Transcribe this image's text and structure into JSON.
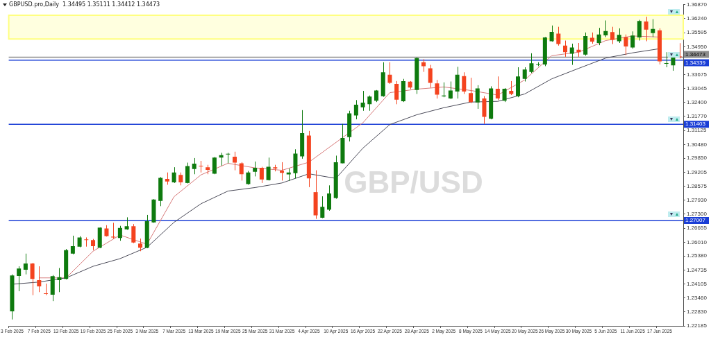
{
  "chart_data": {
    "type": "candlestick",
    "title": "GBPUSD.pro,Daily  1.34495 1.35111 1.34412 1.34473",
    "annotations": [
      "GBP/USD"
    ],
    "categories": [
      "3 Feb 2025",
      null,
      null,
      null,
      "7 Feb 2025",
      null,
      null,
      null,
      "13 Feb 2025",
      null,
      null,
      null,
      "19 Feb 2025",
      null,
      null,
      null,
      "25 Feb 2025",
      null,
      null,
      null,
      "3 Mar 2025",
      null,
      null,
      null,
      "7 Mar 2025",
      null,
      null,
      null,
      "13 Mar 2025",
      null,
      null,
      null,
      "19 Mar 2025",
      null,
      null,
      null,
      "25 Mar 2025",
      null,
      null,
      null,
      "31 Mar 2025",
      null,
      null,
      null,
      "4 Apr 2025",
      null,
      null,
      null,
      "10 Apr 2025",
      null,
      null,
      null,
      "16 Apr 2025",
      null,
      null,
      null,
      "22 Apr 2025",
      null,
      null,
      null,
      "28 Apr 2025",
      null,
      null,
      null,
      "2 May 2025",
      null,
      null,
      null,
      "8 May 2025",
      null,
      null,
      null,
      "14 May 2025",
      null,
      null,
      null,
      "20 May 2025",
      null,
      null,
      null,
      "26 May 2025",
      null,
      null,
      null,
      "30 May 2025",
      null,
      null,
      null,
      "5 Jun 2025",
      null,
      null,
      null,
      "11 Jun 2025",
      null,
      null,
      null,
      "17 Jun 2025",
      null,
      null,
      null
    ],
    "ohlc": [
      [
        1.2285,
        1.2454,
        1.2248,
        1.2449
      ],
      [
        1.2447,
        1.2491,
        1.2377,
        1.2481
      ],
      [
        1.2475,
        1.2549,
        1.2454,
        1.2504
      ],
      [
        1.2504,
        1.2507,
        1.2359,
        1.2433
      ],
      [
        1.2428,
        1.2491,
        1.2373,
        1.2399
      ],
      [
        1.2366,
        1.2412,
        1.2359,
        1.2364
      ],
      [
        1.2361,
        1.2451,
        1.2332,
        1.2446
      ],
      [
        1.2428,
        1.2483,
        1.2373,
        1.2441
      ],
      [
        1.2433,
        1.257,
        1.2431,
        1.2565
      ],
      [
        1.2549,
        1.2631,
        1.2546,
        1.2583
      ],
      [
        1.2581,
        1.2629,
        1.2578,
        1.2623
      ],
      [
        1.2613,
        1.2623,
        1.2581,
        1.2611
      ],
      [
        1.2611,
        1.2616,
        1.2565,
        1.2583
      ],
      [
        1.2576,
        1.2669,
        1.2574,
        1.2668
      ],
      [
        1.2664,
        1.2679,
        1.2627,
        1.2629
      ],
      [
        1.2627,
        1.269,
        1.2618,
        1.2623
      ],
      [
        1.262,
        1.2676,
        1.2608,
        1.2666
      ],
      [
        1.266,
        1.2715,
        1.2658,
        1.2674
      ],
      [
        1.2674,
        1.2684,
        1.2597,
        1.26
      ],
      [
        1.2595,
        1.2618,
        1.256,
        1.2576
      ],
      [
        1.2576,
        1.2726,
        1.2574,
        1.2697
      ],
      [
        1.2692,
        1.2798,
        1.269,
        1.2796
      ],
      [
        1.279,
        1.2899,
        1.2766,
        1.2895
      ],
      [
        1.2891,
        1.292,
        1.2864,
        1.2879
      ],
      [
        1.2875,
        1.2944,
        1.2872,
        1.292
      ],
      [
        1.2909,
        1.292,
        1.2861,
        1.2875
      ],
      [
        1.2872,
        1.2965,
        1.287,
        1.2949
      ],
      [
        1.2936,
        1.2986,
        1.2912,
        1.296
      ],
      [
        1.2951,
        1.2973,
        1.292,
        1.2948
      ],
      [
        1.2944,
        1.2955,
        1.2912,
        1.2932
      ],
      [
        1.2914,
        1.2991,
        1.2912,
        1.2988
      ],
      [
        1.2988,
        1.301,
        1.2951,
        1.2999
      ],
      [
        1.3002,
        1.301,
        1.2962,
        1.3004
      ],
      [
        1.2992,
        1.3015,
        1.293,
        1.2965
      ],
      [
        1.2962,
        1.2967,
        1.2883,
        1.2912
      ],
      [
        1.2867,
        1.2927,
        1.2864,
        1.292
      ],
      [
        1.2923,
        1.297,
        1.2902,
        1.2941
      ],
      [
        1.2941,
        1.2946,
        1.2872,
        1.2888
      ],
      [
        1.2885,
        1.2988,
        1.2883,
        1.2946
      ],
      [
        1.2944,
        1.2955,
        1.2925,
        1.2938
      ],
      [
        1.2928,
        1.2967,
        1.2883,
        1.2918
      ],
      [
        1.2911,
        1.2938,
        1.2881,
        1.292
      ],
      [
        1.2917,
        1.3026,
        1.2893,
        1.3006
      ],
      [
        1.2994,
        1.3205,
        1.2983,
        1.31
      ],
      [
        1.3089,
        1.311,
        1.2853,
        1.2893
      ],
      [
        1.283,
        1.293,
        1.2708,
        1.2724
      ],
      [
        1.2713,
        1.2811,
        1.2711,
        1.2763
      ],
      [
        1.275,
        1.2861,
        1.2745,
        1.2824
      ],
      [
        1.2803,
        1.2997,
        1.28,
        1.2967
      ],
      [
        1.2962,
        1.3142,
        1.2962,
        1.3078
      ],
      [
        1.3082,
        1.3202,
        1.3062,
        1.319
      ],
      [
        1.3181,
        1.3251,
        1.3163,
        1.323
      ],
      [
        1.3218,
        1.3293,
        1.3202,
        1.3239
      ],
      [
        1.3232,
        1.3272,
        1.3202,
        1.3267
      ],
      [
        1.3248,
        1.3297,
        1.3242,
        1.3295
      ],
      [
        1.3269,
        1.3424,
        1.3266,
        1.3378
      ],
      [
        1.3367,
        1.3424,
        1.3325,
        1.333
      ],
      [
        1.3325,
        1.3338,
        1.3232,
        1.3253
      ],
      [
        1.3246,
        1.3348,
        1.3242,
        1.3338
      ],
      [
        1.3335,
        1.3338,
        1.3301,
        1.3308
      ],
      [
        1.3297,
        1.3446,
        1.3279,
        1.3443
      ],
      [
        1.3424,
        1.3438,
        1.338,
        1.3406
      ],
      [
        1.3396,
        1.3412,
        1.3308,
        1.333
      ],
      [
        1.3327,
        1.3343,
        1.3258,
        1.3276
      ],
      [
        1.3268,
        1.3332,
        1.3264,
        1.3272
      ],
      [
        1.3258,
        1.3336,
        1.3255,
        1.3295
      ],
      [
        1.329,
        1.3403,
        1.3258,
        1.3367
      ],
      [
        1.3361,
        1.3378,
        1.3279,
        1.329
      ],
      [
        1.3283,
        1.3353,
        1.3237,
        1.3242
      ],
      [
        1.324,
        1.3319,
        1.3211,
        1.3304
      ],
      [
        1.3258,
        1.3269,
        1.3142,
        1.3174
      ],
      [
        1.3166,
        1.3314,
        1.3163,
        1.3304
      ],
      [
        1.3303,
        1.3359,
        1.3251,
        1.3258
      ],
      [
        1.3248,
        1.3306,
        1.3242,
        1.3303
      ],
      [
        1.3293,
        1.3338,
        1.3274,
        1.3279
      ],
      [
        1.3269,
        1.3401,
        1.3264,
        1.3359
      ],
      [
        1.3348,
        1.3401,
        1.3336,
        1.3391
      ],
      [
        1.338,
        1.3465,
        1.3375,
        1.3419
      ],
      [
        1.3412,
        1.3424,
        1.3406,
        1.3415
      ],
      [
        1.3414,
        1.3539,
        1.3406,
        1.3537
      ],
      [
        1.352,
        1.3592,
        1.3518,
        1.3563
      ],
      [
        1.3555,
        1.3586,
        1.35,
        1.3507
      ],
      [
        1.35,
        1.3523,
        1.3449,
        1.347
      ],
      [
        1.3463,
        1.3509,
        1.3412,
        1.3491
      ],
      [
        1.3481,
        1.3512,
        1.3449,
        1.347
      ],
      [
        1.3459,
        1.356,
        1.3454,
        1.3544
      ],
      [
        1.3536,
        1.356,
        1.3509,
        1.3518
      ],
      [
        1.3512,
        1.3581,
        1.3502,
        1.3551
      ],
      [
        1.3547,
        1.3615,
        1.3539,
        1.3567
      ],
      [
        1.3562,
        1.3586,
        1.3507,
        1.3526
      ],
      [
        1.352,
        1.3579,
        1.3512,
        1.3549
      ],
      [
        1.3539,
        1.3551,
        1.3457,
        1.3496
      ],
      [
        1.3491,
        1.3565,
        1.3486,
        1.3546
      ],
      [
        1.3537,
        1.3618,
        1.3523,
        1.3613
      ],
      [
        1.361,
        1.3632,
        1.352,
        1.3573
      ],
      [
        1.3557,
        1.3621,
        1.3539,
        1.3576
      ],
      [
        1.357,
        1.3579,
        1.3414,
        1.3428
      ],
      [
        1.3417,
        1.347,
        1.3401,
        1.342
      ],
      [
        1.341,
        1.347,
        1.3385,
        1.3467
      ],
      [
        1.34495,
        1.35111,
        1.34412,
        1.34473
      ]
    ],
    "colors": [
      "#0e7a0e",
      "#0e7a0e",
      "#0e7a0e",
      "#f4431f",
      "#f4431f",
      "#f4431f",
      "#0e7a0e",
      "#0e7a0e",
      "#0e7a0e",
      "#0e7a0e",
      "#0e7a0e",
      "#f4431f",
      "#f4431f",
      "#0e7a0e",
      "#f4431f",
      "#f4431f",
      "#0e7a0e",
      "#0e7a0e",
      "#f4431f",
      "#f4431f",
      "#0e7a0e",
      "#0e7a0e",
      "#0e7a0e",
      "#f4431f",
      "#0e7a0e",
      "#f4431f",
      "#0e7a0e",
      "#0e7a0e",
      "#f4431f",
      "#f4431f",
      "#0e7a0e",
      "#0e7a0e",
      "#0e7a0e",
      "#f4431f",
      "#f4431f",
      "#0e7a0e",
      "#0e7a0e",
      "#f4431f",
      "#0e7a0e",
      "#f4431f",
      "#f4431f",
      "#0e7a0e",
      "#0e7a0e",
      "#0e7a0e",
      "#f4431f",
      "#f4431f",
      "#0e7a0e",
      "#0e7a0e",
      "#0e7a0e",
      "#0e7a0e",
      "#0e7a0e",
      "#0e7a0e",
      "#0e7a0e",
      "#0e7a0e",
      "#0e7a0e",
      "#0e7a0e",
      "#f4431f",
      "#f4431f",
      "#0e7a0e",
      "#f4431f",
      "#0e7a0e",
      "#f4431f",
      "#f4431f",
      "#f4431f",
      "#0e7a0e",
      "#0e7a0e",
      "#0e7a0e",
      "#f4431f",
      "#f4431f",
      "#0e7a0e",
      "#f4431f",
      "#0e7a0e",
      "#f4431f",
      "#0e7a0e",
      "#f4431f",
      "#0e7a0e",
      "#0e7a0e",
      "#0e7a0e",
      "#0e7a0e",
      "#0e7a0e",
      "#0e7a0e",
      "#f4431f",
      "#f4431f",
      "#0e7a0e",
      "#f4431f",
      "#0e7a0e",
      "#f4431f",
      "#0e7a0e",
      "#0e7a0e",
      "#f4431f",
      "#0e7a0e",
      "#f4431f",
      "#0e7a0e",
      "#0e7a0e",
      "#f4431f",
      "#0e7a0e",
      "#f4431f",
      "#0e7a0e",
      "#0e7a0e",
      "#f4431f"
    ],
    "series": [
      {
        "type": "line",
        "color": "#4a4a58",
        "x": [
          "3 Feb 2025",
          "7 Feb 2025",
          "13 Feb 2025",
          "19 Feb 2025",
          "25 Feb 2025",
          "3 Mar 2025",
          "7 Mar 2025",
          "13 Mar 2025",
          "19 Mar 2025",
          "25 Mar 2025",
          "31 Mar 2025",
          "4 Apr 2025",
          "10 Apr 2025",
          "16 Apr 2025",
          "22 Apr 2025",
          "28 Apr 2025",
          "2 May 2025",
          "8 May 2025",
          "14 May 2025",
          "20 May 2025",
          "26 May 2025",
          "30 May 2025",
          "5 Jun 2025",
          "11 Jun 2025",
          "17 Jun 2025"
        ],
        "values": [
          1.2409,
          1.2419,
          1.2438,
          1.2491,
          1.2526,
          1.2578,
          1.2692,
          1.2777,
          1.2835,
          1.2851,
          1.2872,
          1.2914,
          1.2893,
          1.3031,
          1.3139,
          1.3184,
          1.3216,
          1.3242,
          1.3245,
          1.3279,
          1.3348,
          1.3396,
          1.3443,
          1.3467,
          1.3486
        ]
      },
      {
        "type": "line",
        "color": "#d77a7a",
        "x": [
          "3 Feb 2025",
          "7 Feb 2025",
          "13 Feb 2025",
          "19 Feb 2025",
          "25 Feb 2025",
          "3 Mar 2025",
          "7 Mar 2025",
          "13 Mar 2025",
          "19 Mar 2025",
          "25 Mar 2025",
          "31 Mar 2025",
          "4 Apr 2025",
          "10 Apr 2025",
          "16 Apr 2025",
          "22 Apr 2025",
          "28 Apr 2025",
          "2 May 2025",
          "8 May 2025",
          "14 May 2025",
          "20 May 2025",
          "26 May 2025",
          "30 May 2025",
          "5 Jun 2025",
          "11 Jun 2025",
          "17 Jun 2025"
        ],
        "values": [
          null,
          1.2438,
          1.2438,
          1.256,
          1.2634,
          1.2592,
          1.2809,
          1.2909,
          1.2962,
          1.2941,
          1.293,
          1.2967,
          null,
          1.3147,
          1.3285,
          1.3301,
          1.3311,
          1.3295,
          1.3274,
          1.3343,
          1.3454,
          1.347,
          1.3523,
          1.3544,
          1.3539
        ]
      }
    ],
    "ylim": [
      1.22185,
      1.3687
    ],
    "yticks": [
      {
        "value": 1.3687,
        "label": "1.36870"
      },
      {
        "value": 1.3624,
        "label": "1.36240"
      },
      {
        "value": 1.35595,
        "label": "1.35595"
      },
      {
        "value": 1.3495,
        "label": "1.34950"
      },
      {
        "value": 1.34305,
        "label": null
      },
      {
        "value": 1.33675,
        "label": "1.33675"
      },
      {
        "value": 1.33045,
        "label": "1.33045"
      },
      {
        "value": 1.324,
        "label": "1.32400"
      },
      {
        "value": 1.3177,
        "label": "1.31770"
      },
      {
        "value": 1.31125,
        "label": "1.31125"
      },
      {
        "value": 1.3048,
        "label": "1.30480"
      },
      {
        "value": 1.2985,
        "label": "1.29850"
      },
      {
        "value": 1.29205,
        "label": "1.29205"
      },
      {
        "value": 1.28575,
        "label": "1.28575"
      },
      {
        "value": 1.2793,
        "label": "1.27930"
      },
      {
        "value": 1.273,
        "label": "1.27300"
      },
      {
        "value": 1.26655,
        "label": "1.26655"
      },
      {
        "value": 1.2601,
        "label": "1.26010"
      },
      {
        "value": 1.2538,
        "label": "1.25380"
      },
      {
        "value": 1.24735,
        "label": "1.24735"
      },
      {
        "value": 1.24105,
        "label": "1.24105"
      },
      {
        "value": 1.2346,
        "label": "1.23460"
      },
      {
        "value": 1.2283,
        "label": "1.22830"
      },
      {
        "value": 1.22185,
        "label": "1.22185"
      }
    ],
    "ref_lines": [
      {
        "axis": "y",
        "value": 1.34473,
        "label": "1.34473",
        "color": "#8c8c8c"
      },
      {
        "axis": "y",
        "value": 1.34339,
        "label": "1.34339",
        "color": "#1a3ed6"
      },
      {
        "axis": "y",
        "value": 1.31403,
        "label": "1.31403",
        "color": "#1a3ed6"
      },
      {
        "axis": "y",
        "value": 1.27007,
        "label": "1.27007",
        "color": "#1a3ed6"
      }
    ],
    "bands": [
      {
        "axis": "y",
        "from": 1.353,
        "to": 1.3639,
        "color": "#ffff80"
      }
    ],
    "grid": false,
    "legend": false,
    "marker": "none"
  }
}
